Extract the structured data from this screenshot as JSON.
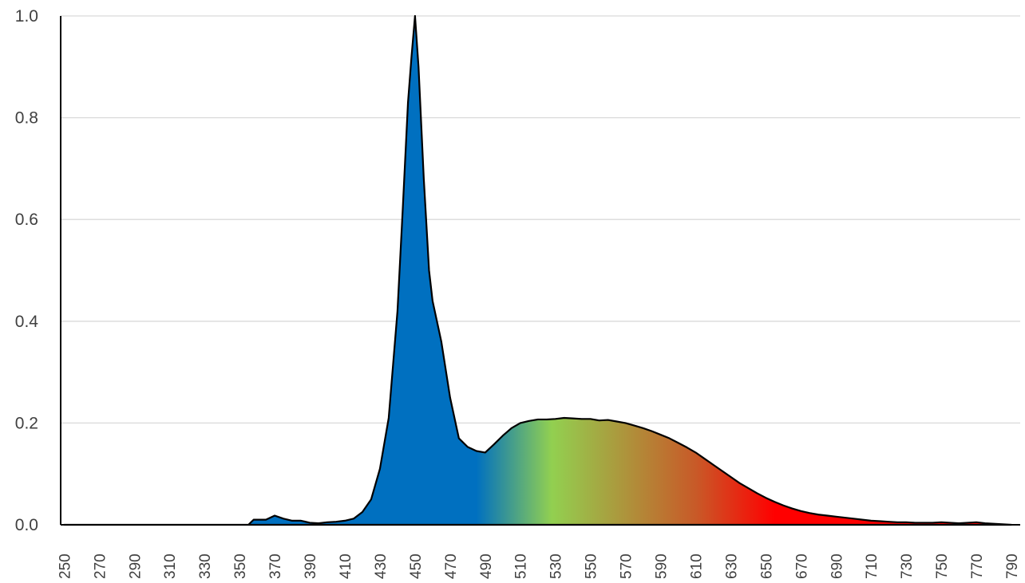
{
  "chart_data": {
    "type": "area",
    "title": "",
    "xlabel": "",
    "ylabel": "",
    "xlim": [
      248,
      795
    ],
    "ylim": [
      0,
      1.0
    ],
    "grid": true,
    "legend": "none",
    "yticks": [
      "0.0",
      "0.2",
      "0.4",
      "0.6",
      "0.8",
      "1.0"
    ],
    "xticks": [
      "250",
      "270",
      "290",
      "310",
      "330",
      "350",
      "370",
      "390",
      "410",
      "430",
      "450",
      "470",
      "490",
      "510",
      "530",
      "550",
      "570",
      "590",
      "610",
      "630",
      "650",
      "670",
      "690",
      "710",
      "730",
      "750",
      "770",
      "790"
    ],
    "colors": {
      "blue": "#0070c0",
      "green": "#92d050",
      "red": "#ff0000",
      "outline": "#000000",
      "grid": "#d9d9d9"
    },
    "series": [
      {
        "x": [
          250,
          355,
          358,
          365,
          370,
          375,
          380,
          385,
          390,
          395,
          400,
          405,
          410,
          415,
          420,
          425,
          430,
          435,
          440,
          443,
          446,
          448,
          450,
          452,
          455,
          458,
          460,
          465,
          470,
          475,
          480,
          485,
          490,
          495,
          500,
          505,
          510,
          515,
          520,
          525,
          530,
          535,
          540,
          545,
          550,
          555,
          560,
          565,
          570,
          575,
          580,
          585,
          590,
          595,
          600,
          605,
          610,
          615,
          620,
          625,
          630,
          635,
          640,
          645,
          650,
          655,
          660,
          665,
          670,
          675,
          680,
          685,
          690,
          695,
          700,
          705,
          710,
          715,
          720,
          725,
          730,
          735,
          740,
          745,
          750,
          755,
          760,
          765,
          770,
          775,
          780,
          785,
          790
        ],
        "y": [
          0,
          0,
          0.01,
          0.01,
          0.018,
          0.012,
          0.008,
          0.008,
          0.004,
          0.003,
          0.005,
          0.006,
          0.008,
          0.012,
          0.025,
          0.05,
          0.11,
          0.21,
          0.42,
          0.62,
          0.83,
          0.92,
          1.0,
          0.9,
          0.68,
          0.5,
          0.44,
          0.36,
          0.25,
          0.17,
          0.153,
          0.145,
          0.142,
          0.158,
          0.175,
          0.19,
          0.2,
          0.204,
          0.207,
          0.207,
          0.208,
          0.21,
          0.209,
          0.208,
          0.208,
          0.205,
          0.206,
          0.203,
          0.2,
          0.195,
          0.19,
          0.184,
          0.177,
          0.17,
          0.161,
          0.152,
          0.142,
          0.13,
          0.118,
          0.106,
          0.094,
          0.082,
          0.072,
          0.062,
          0.053,
          0.045,
          0.038,
          0.032,
          0.027,
          0.023,
          0.02,
          0.018,
          0.016,
          0.014,
          0.012,
          0.01,
          0.008,
          0.007,
          0.006,
          0.005,
          0.005,
          0.004,
          0.004,
          0.004,
          0.005,
          0.004,
          0.003,
          0.004,
          0.005,
          0.003,
          0.002,
          0.001,
          0
        ]
      }
    ]
  }
}
